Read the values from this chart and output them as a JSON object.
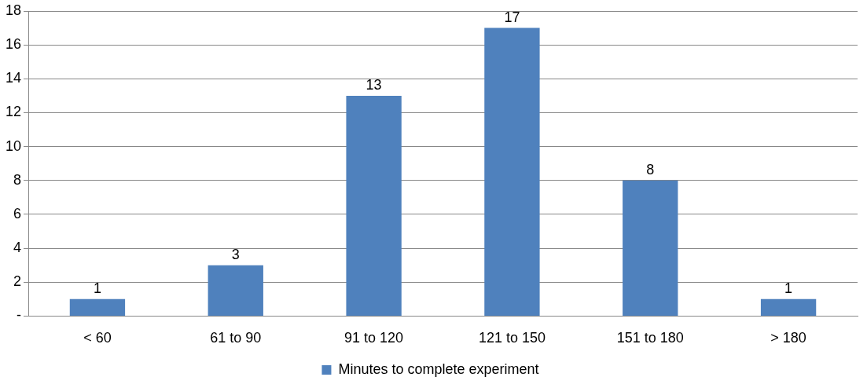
{
  "chart_data": {
    "type": "bar",
    "categories": [
      "< 60",
      "61 to 90",
      "91 to 120",
      "121 to 150",
      "151 to 180",
      "> 180"
    ],
    "series": [
      {
        "name": "Minutes to complete experiment",
        "color": "#4f81bd",
        "values": [
          1,
          3,
          13,
          17,
          8,
          1
        ]
      }
    ],
    "ylim": [
      0,
      18
    ],
    "yticks": [
      {
        "value": 0,
        "label": "-"
      },
      2,
      4,
      6,
      8,
      10,
      12,
      14,
      16,
      18
    ],
    "grid": "y",
    "legend": "bottom",
    "data_labels": true
  }
}
